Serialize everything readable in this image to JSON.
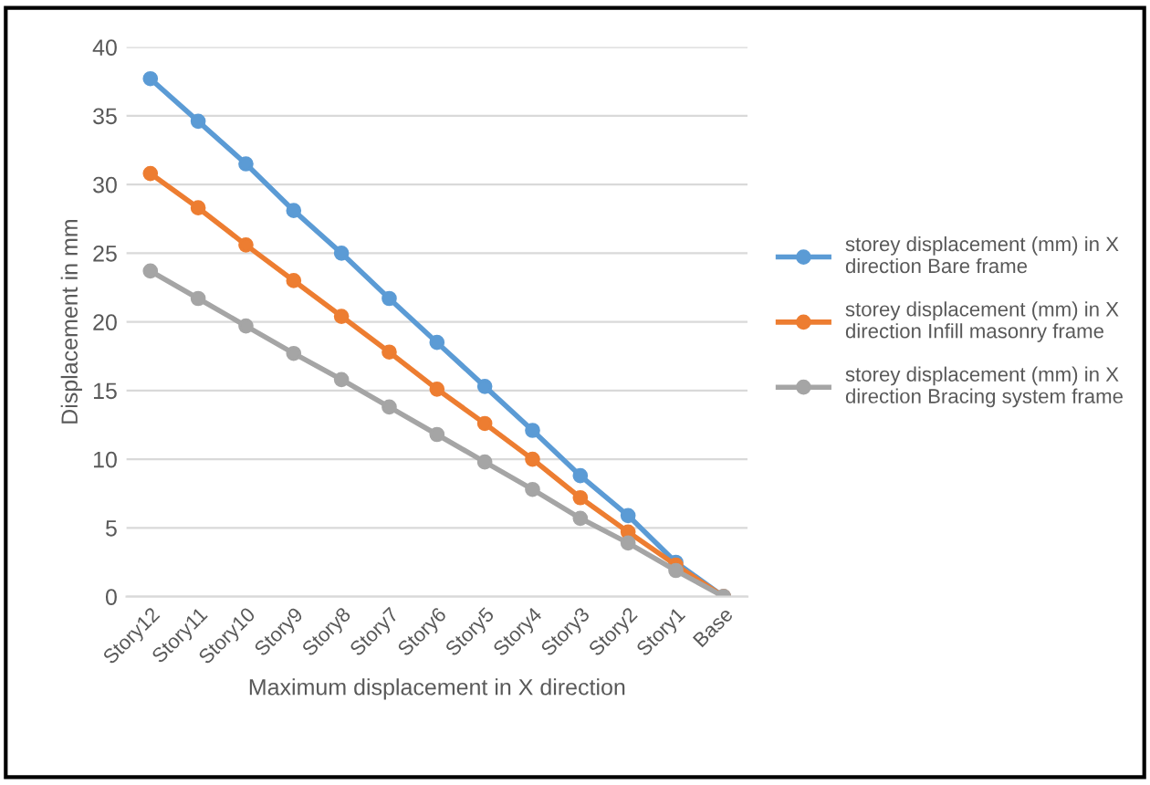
{
  "chart_data": {
    "type": "line",
    "xlabel": "Maximum displacement in X direction",
    "ylabel": "Displacement in mm",
    "categories": [
      "Story12",
      "Story11",
      "Story10",
      "Story9",
      "Story8",
      "Story7",
      "Story6",
      "Story5",
      "Story4",
      "Story3",
      "Story2",
      "Story1",
      "Base"
    ],
    "series": [
      {
        "name": "storey displacement (mm) in X direction Bare frame",
        "color": "#5b9bd5",
        "values": [
          37.7,
          34.6,
          31.5,
          28.1,
          25.0,
          21.7,
          18.5,
          15.3,
          12.1,
          8.8,
          5.9,
          2.5,
          0
        ]
      },
      {
        "name": "storey displacement (mm) in X direction Infill masonry frame",
        "color": "#ed7d31",
        "values": [
          30.8,
          28.3,
          25.6,
          23.0,
          20.4,
          17.8,
          15.1,
          12.6,
          10.0,
          7.2,
          4.7,
          2.3,
          0
        ]
      },
      {
        "name": "storey displacement (mm) in X direction Bracing system frame",
        "color": "#a5a5a5",
        "values": [
          23.7,
          21.7,
          19.7,
          17.7,
          15.8,
          13.8,
          11.8,
          9.8,
          7.8,
          5.7,
          3.9,
          1.9,
          0
        ]
      }
    ],
    "ylim": [
      0,
      40
    ],
    "yticks": [
      0,
      5,
      10,
      15,
      20,
      25,
      30,
      35,
      40
    ],
    "grid": "y",
    "legend": "right",
    "marker": "circle",
    "line_style": "solid"
  }
}
